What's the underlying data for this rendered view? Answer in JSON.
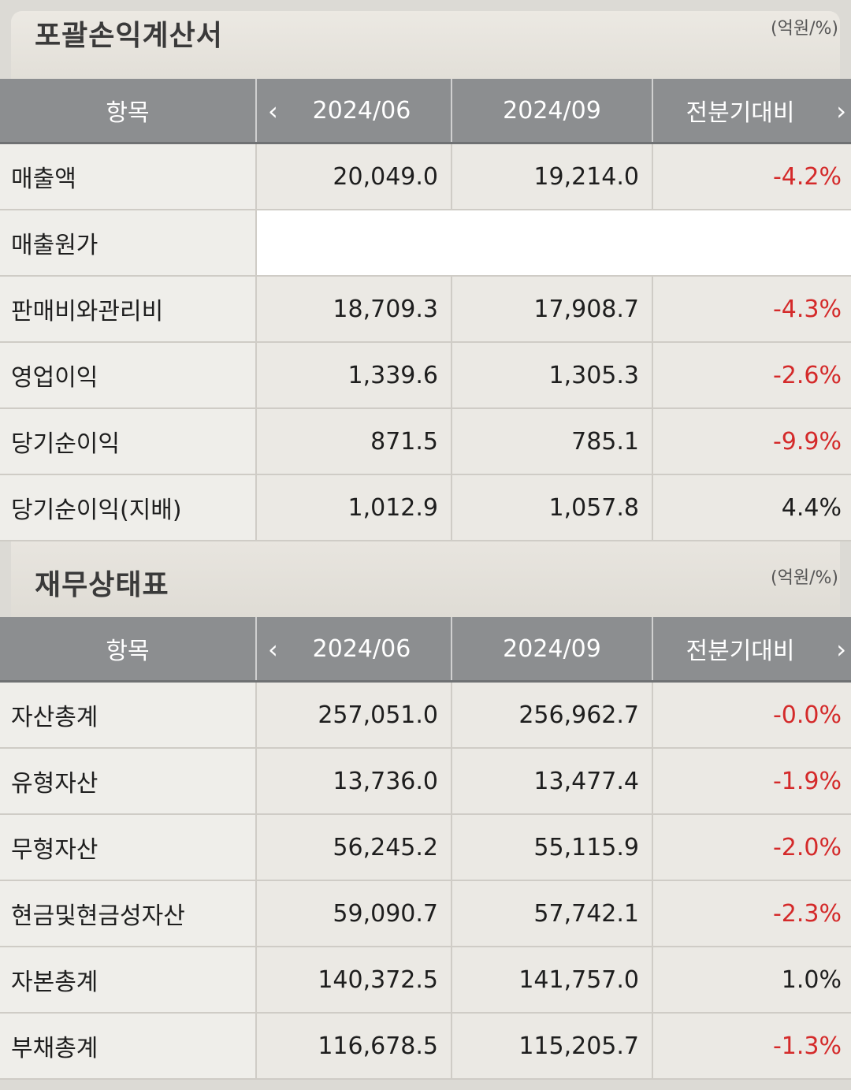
{
  "income": {
    "title": "포괄손익계산서",
    "unit": "(억원/%)",
    "headers": {
      "item": "항목",
      "prev": "2024/06",
      "curr": "2024/09",
      "change": "전분기대비"
    },
    "rows": [
      {
        "label": "매출액",
        "prev": "20,049.0",
        "curr": "19,214.0",
        "change": "-4.2%"
      },
      {
        "label": "매출원가",
        "prev": "",
        "curr": "",
        "change": ""
      },
      {
        "label": "판매비와관리비",
        "prev": "18,709.3",
        "curr": "17,908.7",
        "change": "-4.3%"
      },
      {
        "label": "영업이익",
        "prev": "1,339.6",
        "curr": "1,305.3",
        "change": "-2.6%"
      },
      {
        "label": "당기순이익",
        "prev": "871.5",
        "curr": "785.1",
        "change": "-9.9%"
      },
      {
        "label": "당기순이익(지배)",
        "prev": "1,012.9",
        "curr": "1,057.8",
        "change": "4.4%"
      }
    ]
  },
  "balance": {
    "title": "재무상태표",
    "unit": "(억원/%)",
    "headers": {
      "item": "항목",
      "prev": "2024/06",
      "curr": "2024/09",
      "change": "전분기대비"
    },
    "rows": [
      {
        "label": "자산총계",
        "prev": "257,051.0",
        "curr": "256,962.7",
        "change": "-0.0%"
      },
      {
        "label": "유형자산",
        "prev": "13,736.0",
        "curr": "13,477.4",
        "change": "-1.9%"
      },
      {
        "label": "무형자산",
        "prev": "56,245.2",
        "curr": "55,115.9",
        "change": "-2.0%"
      },
      {
        "label": "현금및현금성자산",
        "prev": "59,090.7",
        "curr": "57,742.1",
        "change": "-2.3%"
      },
      {
        "label": "자본총계",
        "prev": "140,372.5",
        "curr": "141,757.0",
        "change": "1.0%"
      },
      {
        "label": "부채총계",
        "prev": "116,678.5",
        "curr": "115,205.7",
        "change": "-1.3%"
      }
    ]
  },
  "colors": {
    "negative": "#d42a2a",
    "header_bg": "#8c8e90"
  },
  "icons": {
    "prev": "chevron-left-icon",
    "next": "chevron-right-icon"
  }
}
